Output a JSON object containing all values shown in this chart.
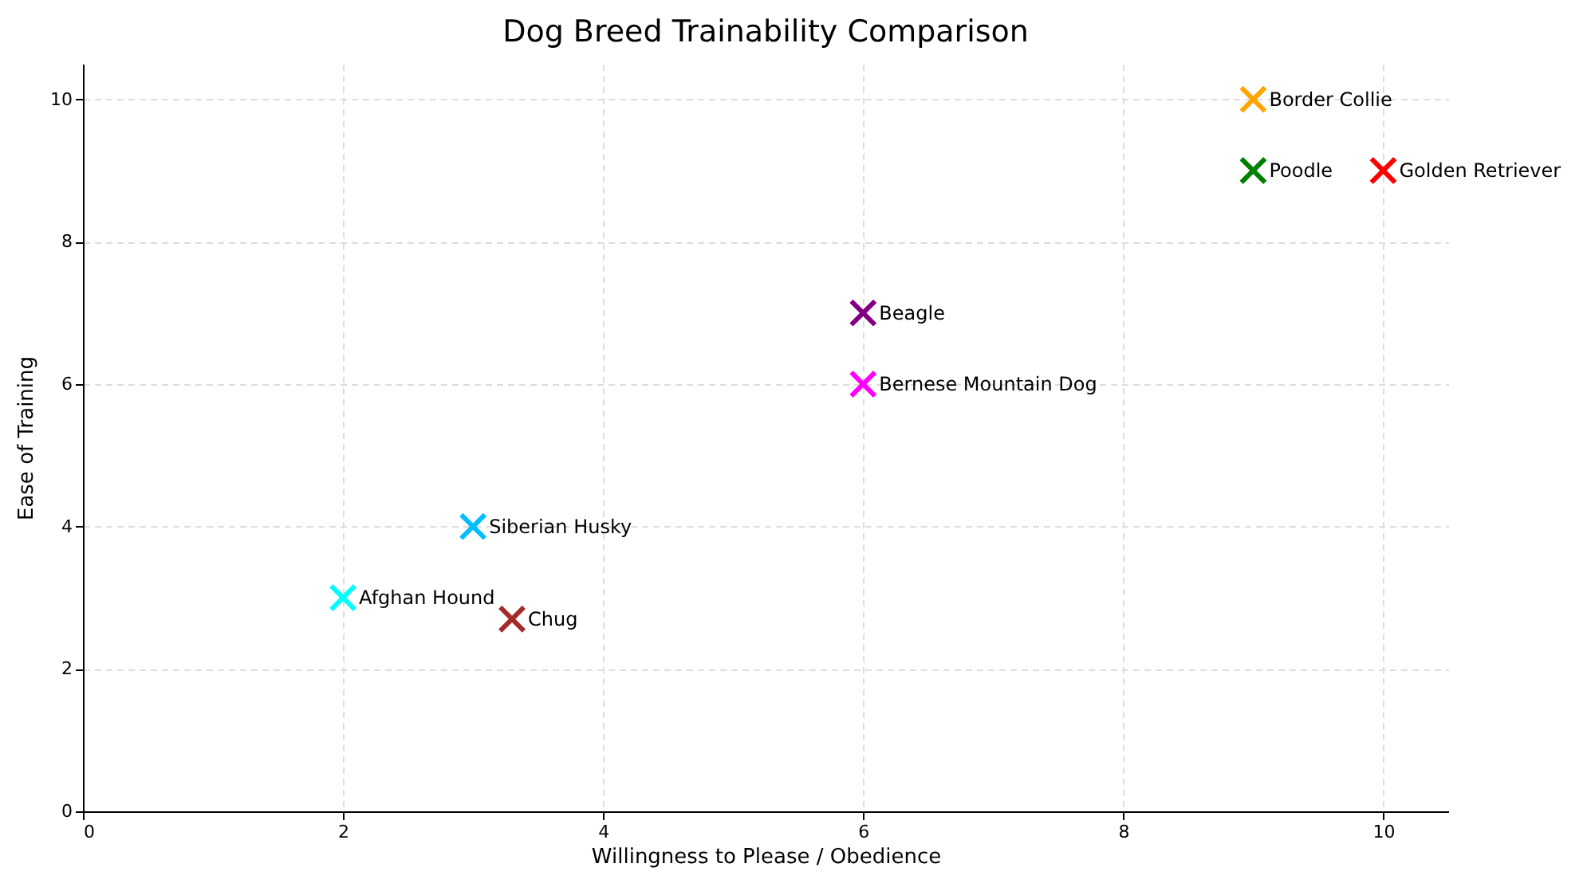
{
  "chart_data": {
    "type": "scatter",
    "title": "Dog Breed Trainability Comparison",
    "xlabel": "Willingness to Please / Obedience",
    "ylabel": "Ease of Training",
    "xlim": [
      0,
      10.5
    ],
    "ylim": [
      0,
      10.5
    ],
    "xticks": [
      0,
      2,
      4,
      6,
      8,
      10
    ],
    "yticks": [
      0,
      2,
      4,
      6,
      8,
      10
    ],
    "grid": true,
    "marker": "cross",
    "legend": false,
    "series": [
      {
        "name": "Border Collie",
        "color": "#ffa500",
        "x": [
          9
        ],
        "values": [
          10
        ]
      },
      {
        "name": "Poodle",
        "color": "#008000",
        "x": [
          9
        ],
        "values": [
          9
        ]
      },
      {
        "name": "Golden Retriever",
        "color": "#ff0000",
        "x": [
          10
        ],
        "values": [
          9
        ]
      },
      {
        "name": "Beagle",
        "color": "#800080",
        "x": [
          6
        ],
        "values": [
          7
        ]
      },
      {
        "name": "Bernese Mountain Dog",
        "color": "#ff00ff",
        "x": [
          6
        ],
        "values": [
          6
        ]
      },
      {
        "name": "Siberian Husky",
        "color": "#00bfff",
        "x": [
          3
        ],
        "values": [
          4
        ]
      },
      {
        "name": "Afghan Hound",
        "color": "#00ffff",
        "x": [
          2
        ],
        "values": [
          3
        ]
      },
      {
        "name": "Chug",
        "color": "#a52a2a",
        "x": [
          3.3
        ],
        "values": [
          2.7
        ]
      }
    ]
  }
}
